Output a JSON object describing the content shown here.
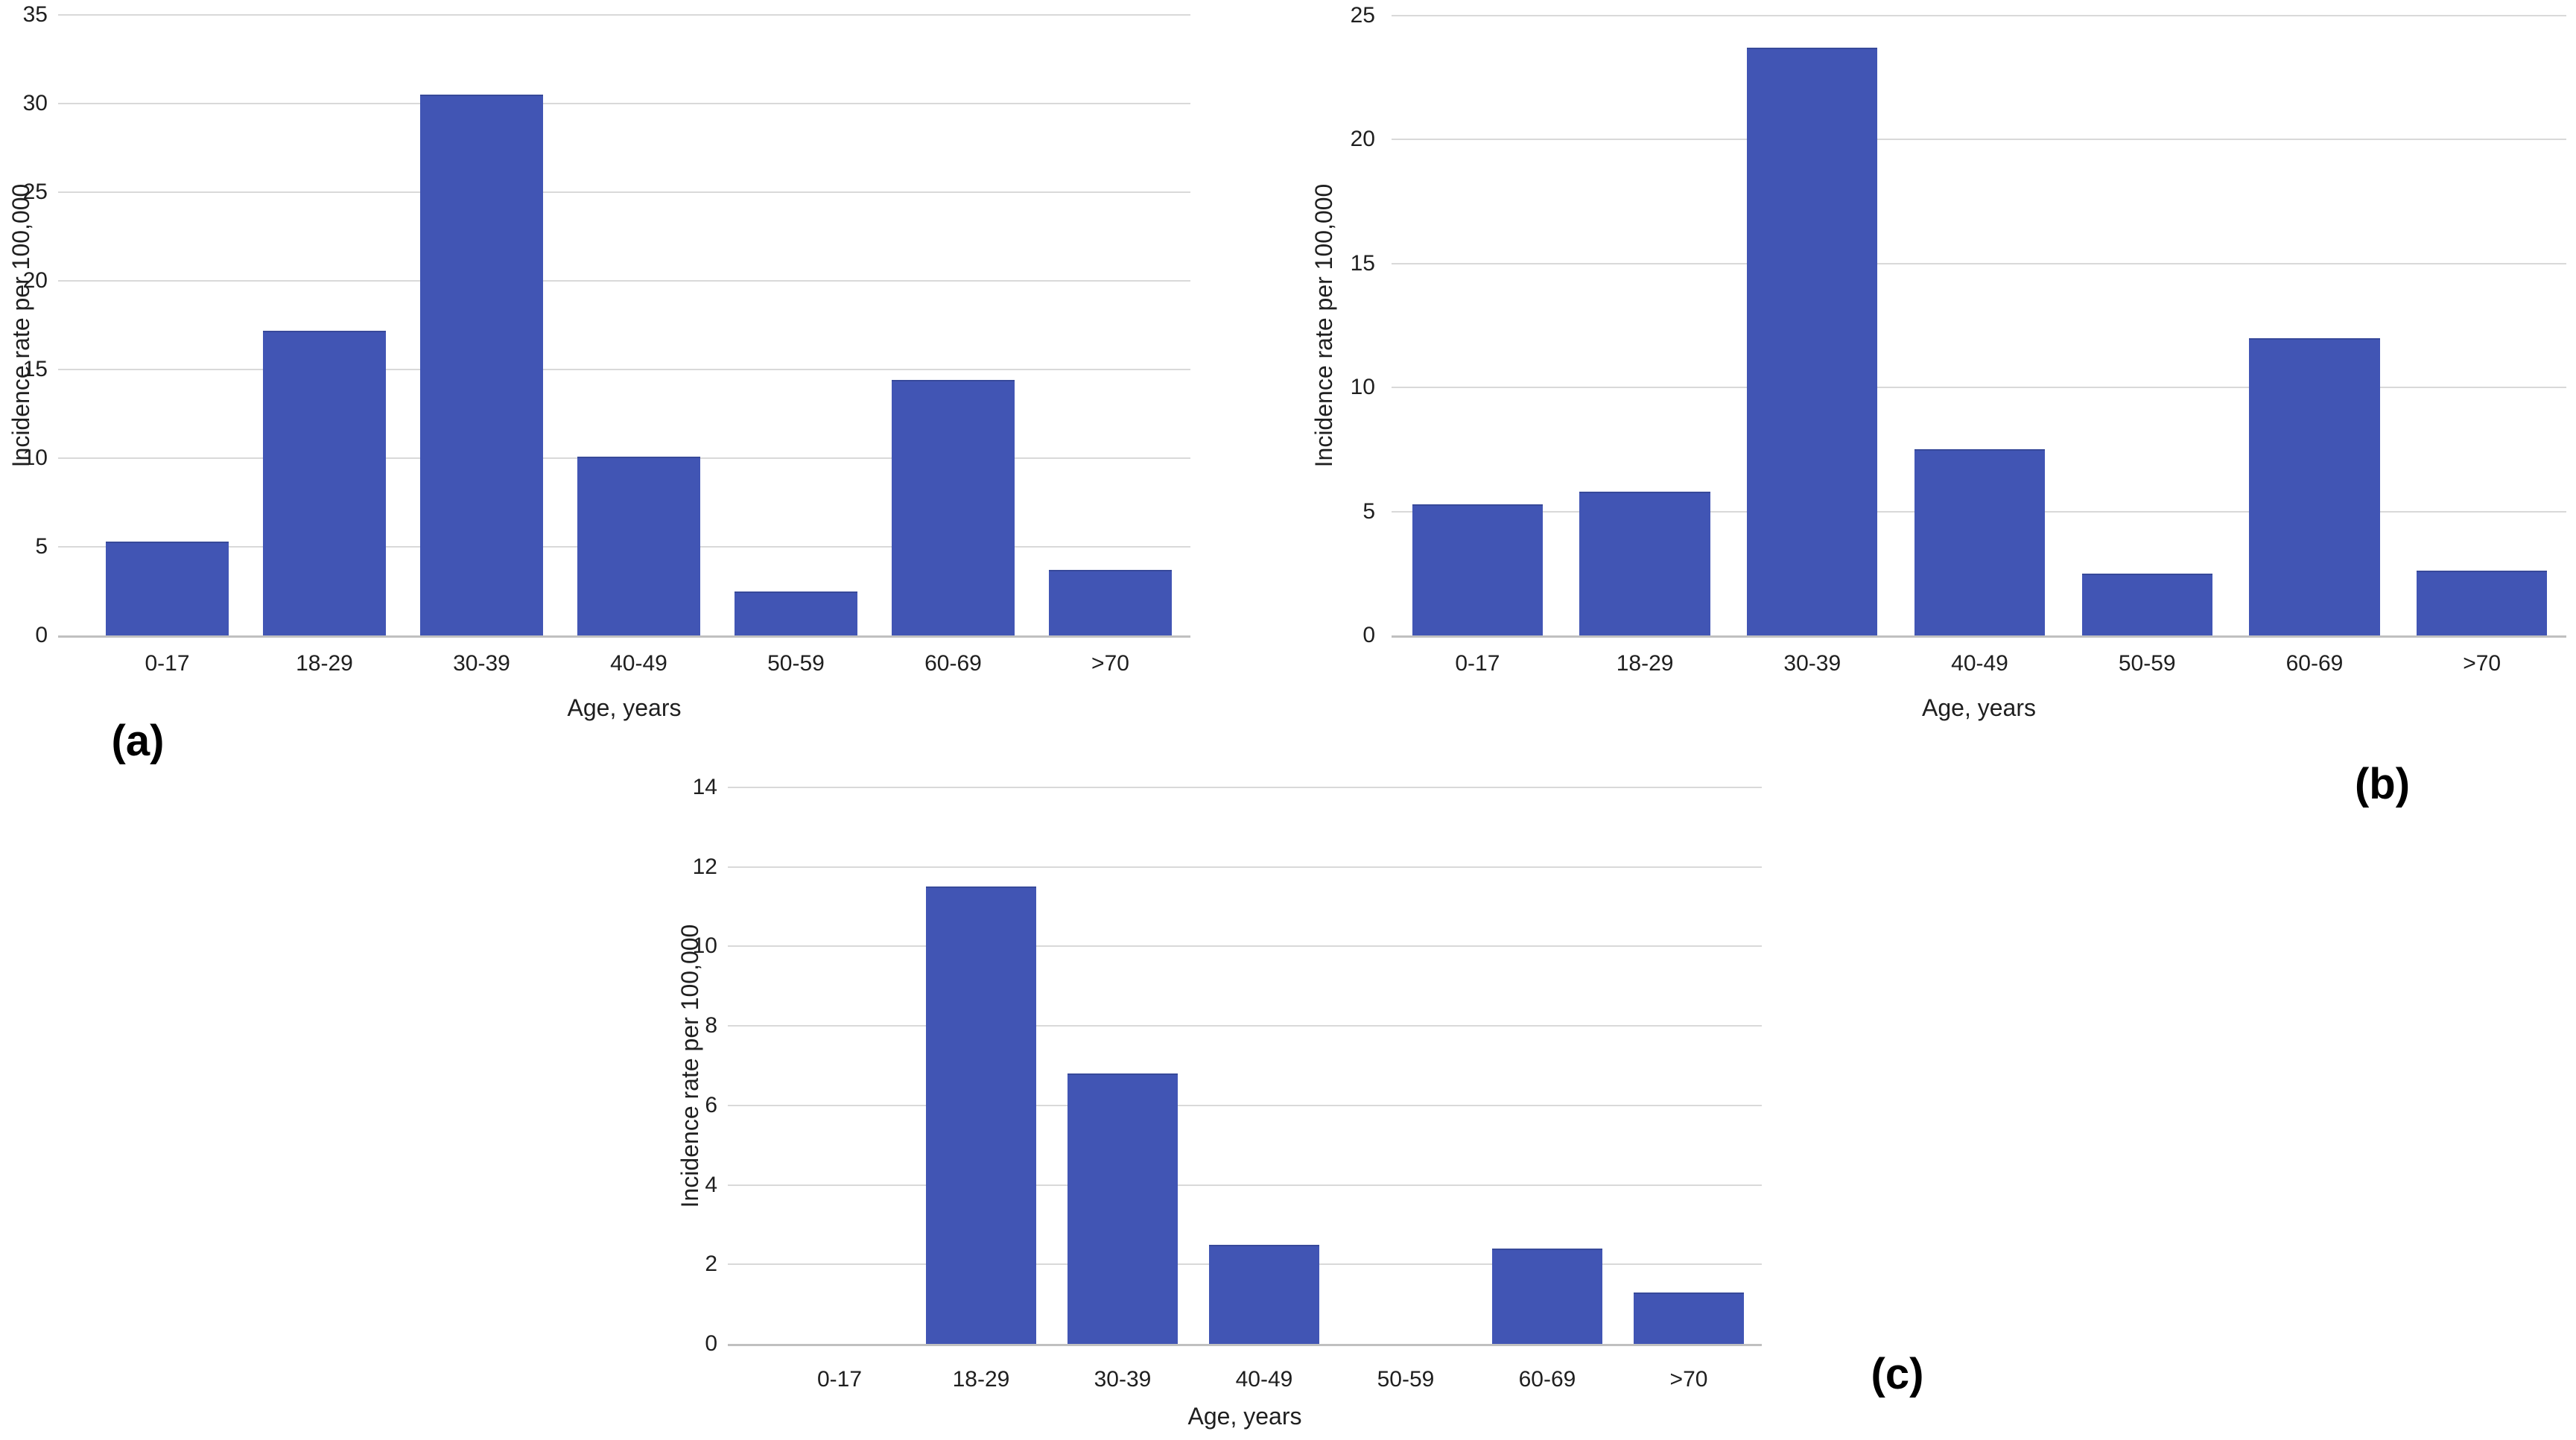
{
  "figure": {
    "background": "#ffffff",
    "bar_color": "#4155b4",
    "gridline_color": "#d9d9d9",
    "axis_line_color": "#c0c0c0",
    "text_color": "#1f1f1f"
  },
  "chart_data": [
    {
      "type": "bar",
      "panel": "(a)",
      "categories": [
        "0-17",
        "18-29",
        "30-39",
        "40-49",
        "50-59",
        "60-69",
        ">70"
      ],
      "values": [
        5.3,
        17.2,
        30.5,
        10.1,
        2.5,
        14.4,
        3.7
      ],
      "xlabel": "Age, years",
      "ylabel": "Incidence rate per 100,000",
      "ylim": [
        0,
        35
      ],
      "yticks": [
        0,
        5,
        10,
        15,
        20,
        25,
        30,
        35
      ],
      "grid": true,
      "legend": false
    },
    {
      "type": "bar",
      "panel": "(b)",
      "categories": [
        "0-17",
        "18-29",
        "30-39",
        "40-49",
        "50-59",
        "60-69",
        ">70"
      ],
      "values": [
        5.3,
        5.8,
        23.7,
        7.5,
        2.5,
        12.0,
        2.6
      ],
      "xlabel": "Age, years",
      "ylabel": "Incidence rate per 100,000",
      "ylim": [
        0,
        25
      ],
      "yticks": [
        0,
        5,
        10,
        15,
        20,
        25
      ],
      "grid": true,
      "legend": false
    },
    {
      "type": "bar",
      "panel": "(c)",
      "categories": [
        "0-17",
        "18-29",
        "30-39",
        "40-49",
        "50-59",
        "60-69",
        ">70"
      ],
      "values": [
        0,
        11.5,
        6.8,
        2.5,
        0,
        2.4,
        1.3
      ],
      "xlabel": "Age, years",
      "ylabel": "Incidence rate per 100,000",
      "ylim": [
        0,
        14
      ],
      "yticks": [
        0,
        2,
        4,
        6,
        8,
        10,
        12,
        14
      ],
      "grid": true,
      "legend": false
    }
  ]
}
